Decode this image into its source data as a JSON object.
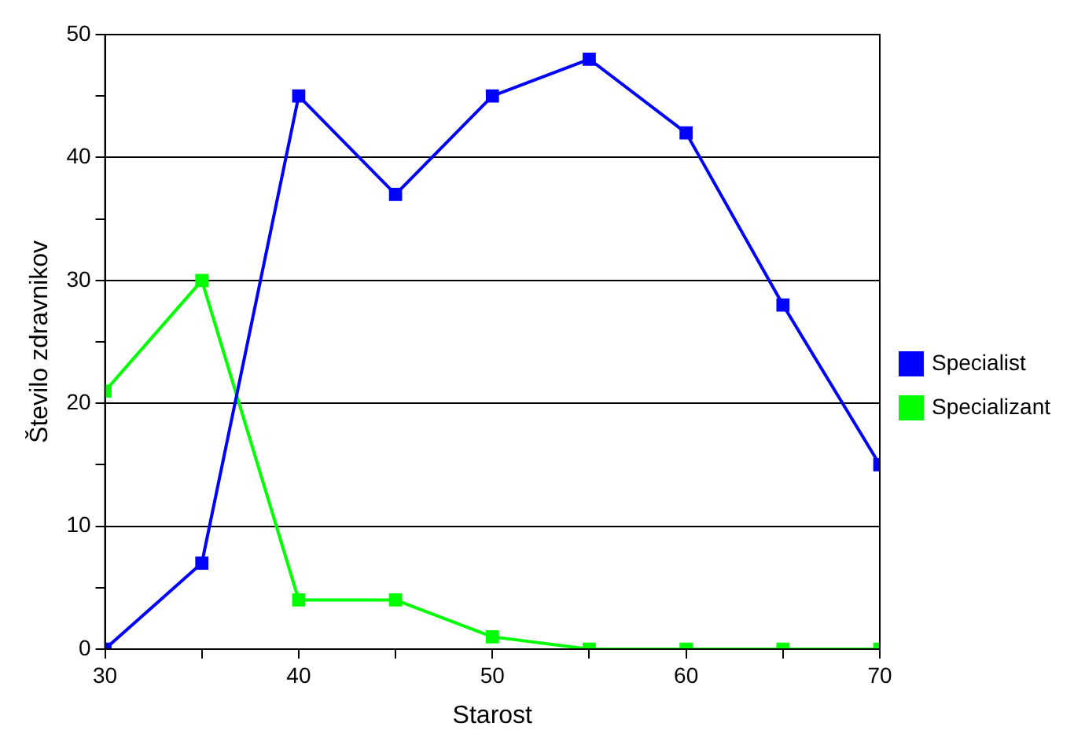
{
  "chart_data": {
    "type": "line",
    "xlabel": "Starost",
    "ylabel": "Število zdravnikov",
    "x": [
      30,
      35,
      40,
      45,
      50,
      55,
      60,
      65,
      70
    ],
    "series": [
      {
        "name": "Specialist",
        "color": "#0000ff",
        "values": [
          0,
          7,
          45,
          37,
          45,
          48,
          42,
          28,
          15
        ]
      },
      {
        "name": "Specializant",
        "color": "#00ff00",
        "values": [
          21,
          30,
          4,
          4,
          1,
          0,
          0,
          0,
          0
        ]
      }
    ],
    "xlim": [
      30,
      70
    ],
    "xticks": [
      30,
      {
        "value": 35,
        "label": null
      },
      40,
      {
        "value": 45,
        "label": null
      },
      50,
      {
        "value": 55,
        "label": null
      },
      60,
      {
        "value": 65,
        "label": null
      },
      70
    ],
    "ylim": [
      0,
      50
    ],
    "yticks": [
      0,
      {
        "value": 5,
        "label": null
      },
      10,
      {
        "value": 15,
        "label": null
      },
      20,
      {
        "value": 25,
        "label": null
      },
      30,
      {
        "value": 35,
        "label": null
      },
      40,
      {
        "value": 45,
        "label": null
      },
      50
    ],
    "grid": "y",
    "legend": "right",
    "marker": "square",
    "line_style": "solid"
  }
}
